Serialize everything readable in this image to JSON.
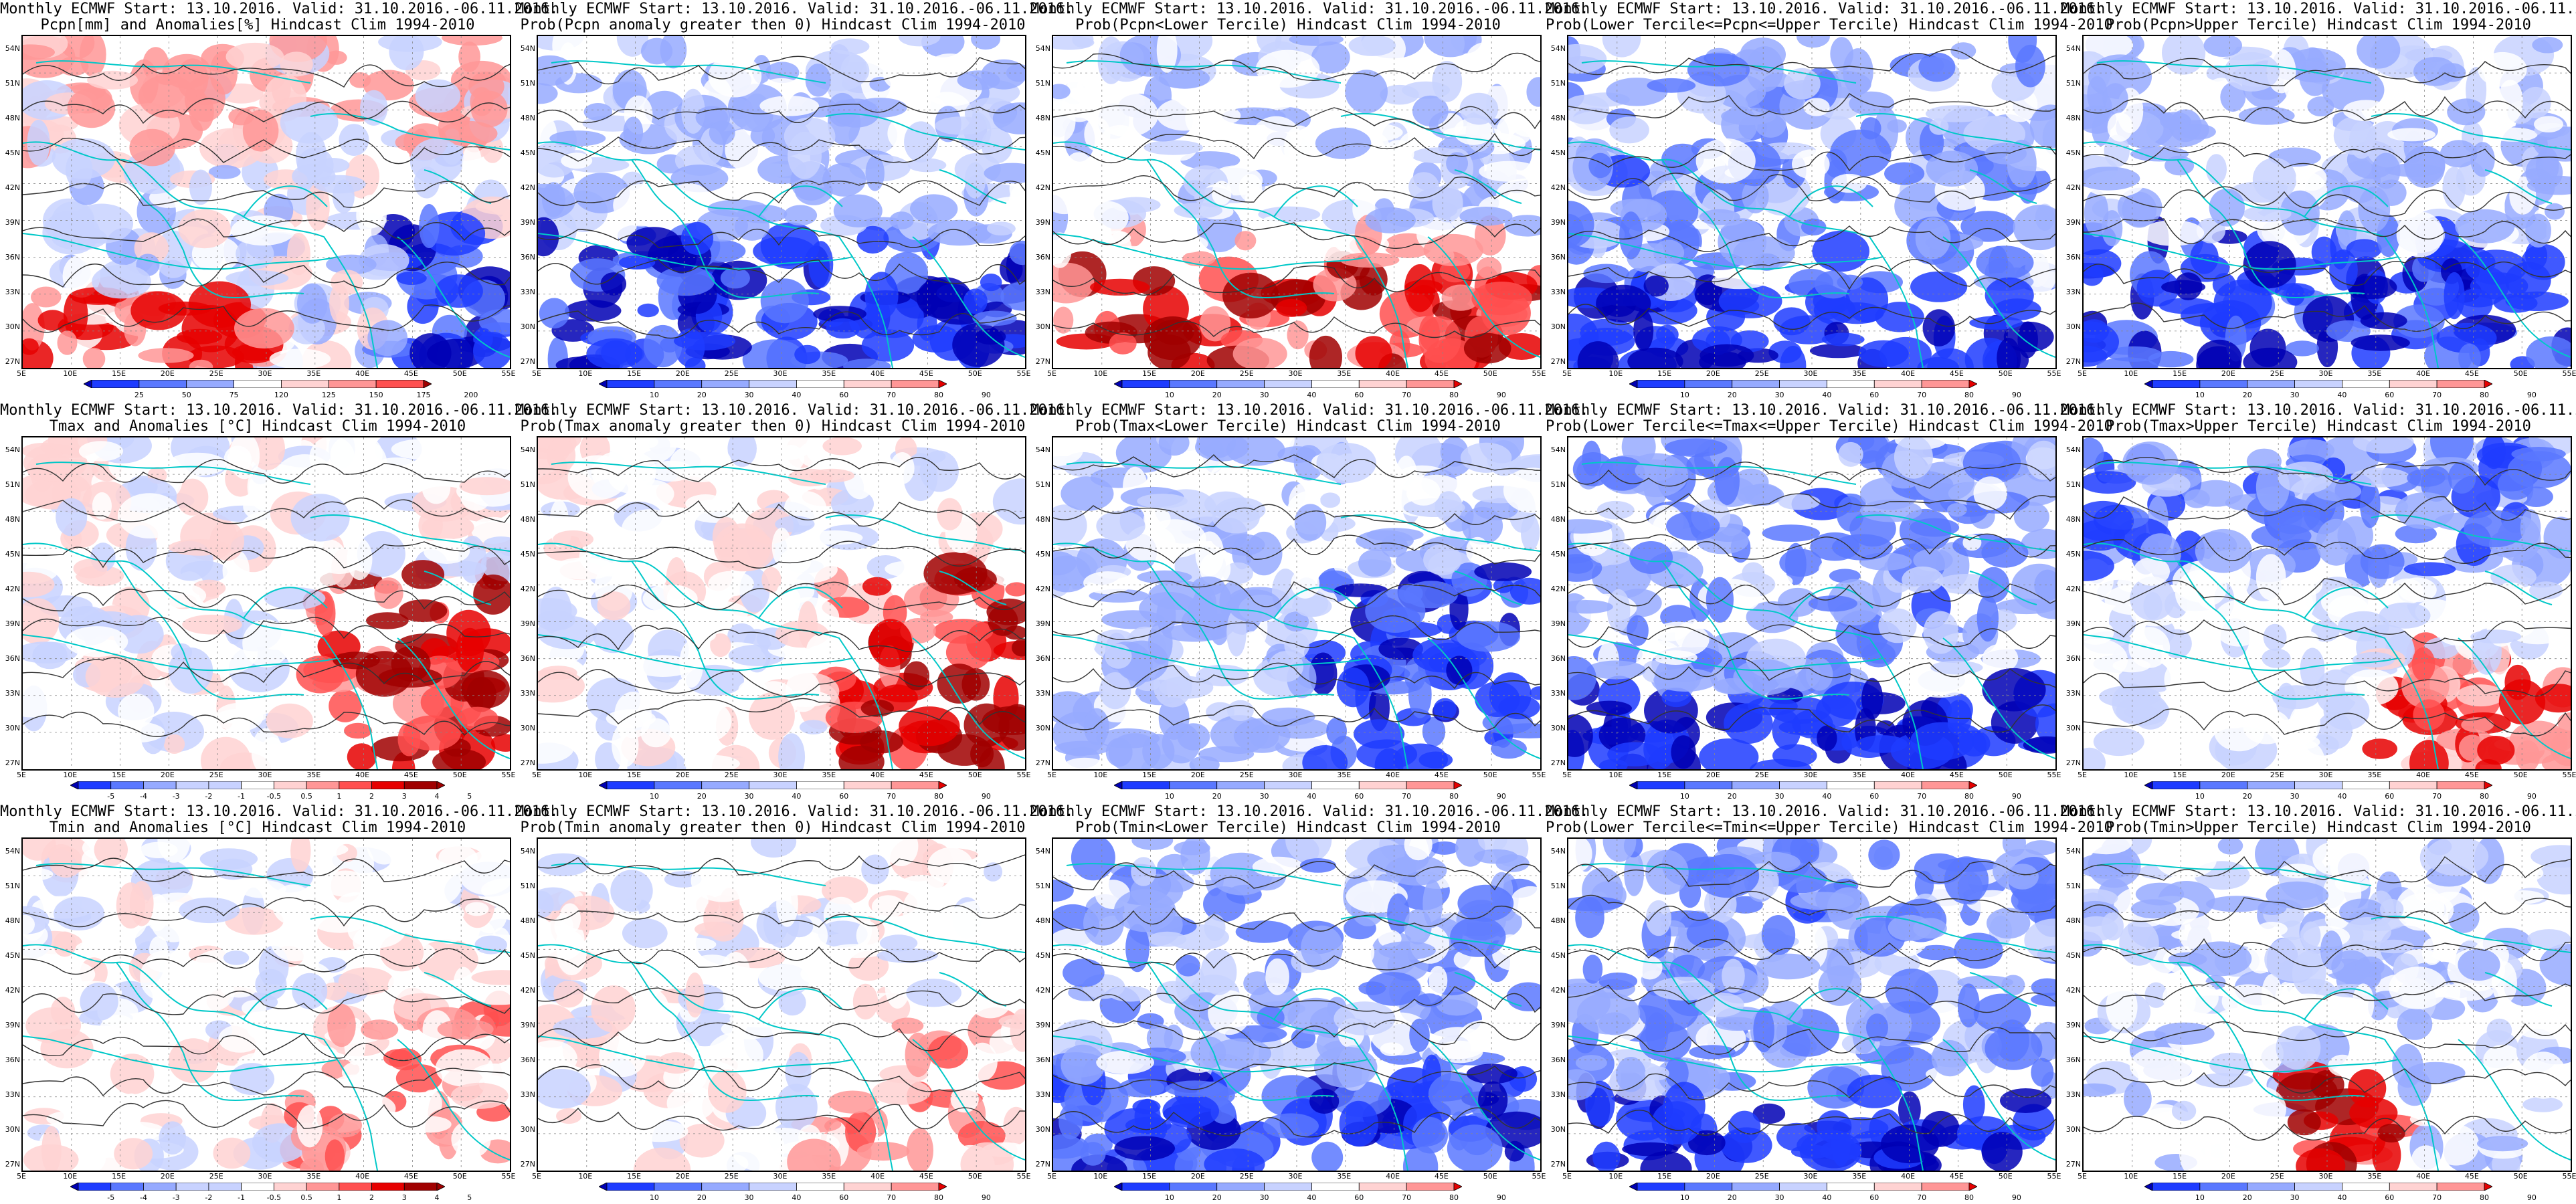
{
  "header": "Monthly ECMWF Start: 13.10.2016. Valid: 31.10.2016.-06.11.2016.",
  "subtitles": [
    [
      "Pcpn[mm] and Anomalies[%] Hindcast Clim 1994-2010",
      "Prob(Pcpn anomaly greater then 0) Hindcast Clim 1994-2010",
      "Prob(Pcpn<Lower Tercile) Hindcast Clim 1994-2010",
      "Prob(Lower Tercile<=Pcpn<=Upper Tercile) Hindcast Clim 1994-2010",
      "Prob(Pcpn>Upper Tercile) Hindcast Clim 1994-2010"
    ],
    [
      "Tmax and Anomalies [°C] Hindcast Clim 1994-2010",
      "Prob(Tmax anomaly greater then 0) Hindcast Clim 1994-2010",
      "Prob(Tmax<Lower Tercile) Hindcast Clim 1994-2010",
      "Prob(Lower Tercile<=Tmax<=Upper Tercile) Hindcast Clim 1994-2010",
      "Prob(Tmax>Upper Tercile) Hindcast Clim 1994-2010"
    ],
    [
      "Tmin and Anomalies [°C] Hindcast Clim 1994-2010",
      "Prob(Tmin anomaly greater then 0) Hindcast Clim 1994-2010",
      "Prob(Tmin<Lower Tercile) Hindcast Clim 1994-2010",
      "Prob(Lower Tercile<=Tmin<=Upper Tercile) Hindcast Clim 1994-2010",
      "Prob(Tmin>Upper Tercile) Hindcast Clim 1994-2010"
    ]
  ],
  "lat_labels": [
    "54N",
    "51N",
    "48N",
    "45N",
    "42N",
    "39N",
    "36N",
    "33N",
    "30N",
    "27N"
  ],
  "lon_labels": [
    "5E",
    "10E",
    "15E",
    "20E",
    "25E",
    "30E",
    "35E",
    "40E",
    "45E",
    "50E",
    "55E"
  ],
  "colorbars": {
    "pcpn_anom": [
      "25",
      "50",
      "75",
      "120",
      "125",
      "150",
      "175",
      "200"
    ],
    "prob": [
      "10",
      "20",
      "30",
      "40",
      "60",
      "70",
      "80",
      "90"
    ],
    "temp_anom": [
      "-5",
      "-4",
      "-3",
      "-2",
      "-1",
      "-0.5",
      "0.5",
      "1",
      "2",
      "3",
      "4",
      "5"
    ]
  },
  "panel_types": [
    [
      "pcpn_anom",
      "prob",
      "prob",
      "prob",
      "prob"
    ],
    [
      "temp_anom",
      "prob",
      "prob",
      "prob",
      "prob"
    ],
    [
      "temp_anom",
      "prob",
      "prob",
      "prob",
      "prob"
    ]
  ],
  "colors": {
    "coast": "#00c8c8",
    "contour": "#333333",
    "scale": [
      "#0000b4",
      "#1e3cff",
      "#5a78ff",
      "#96aaff",
      "#c8d2ff",
      "#ffffff",
      "#ffd2d2",
      "#ff9696",
      "#ff5050",
      "#e60000",
      "#a00000"
    ]
  }
}
